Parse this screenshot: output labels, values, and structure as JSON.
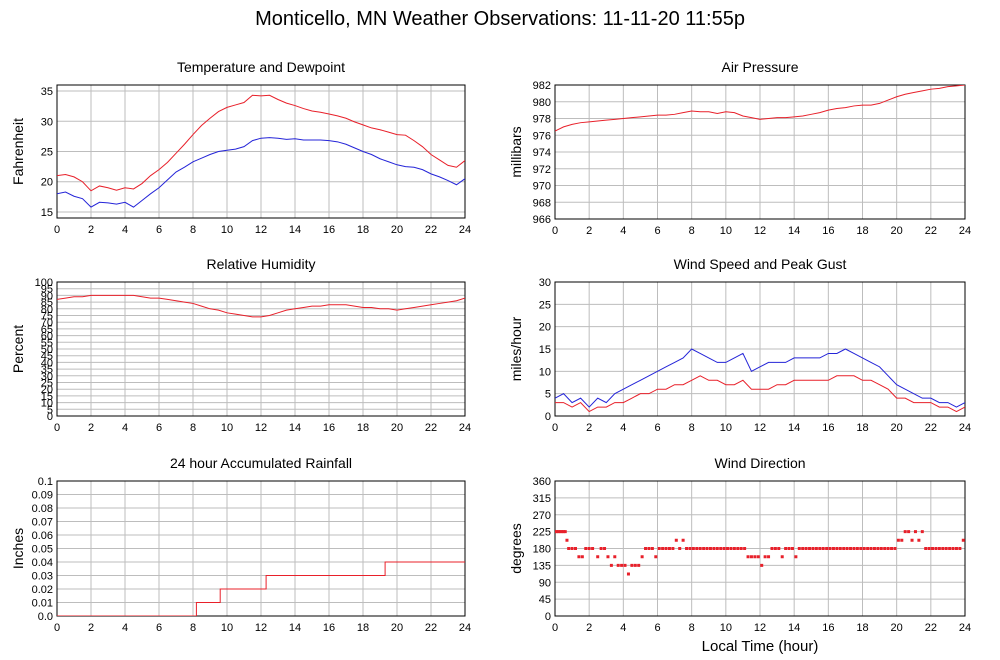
{
  "page": {
    "title": "Monticello, MN Weather Observations: 11-11-20 11:55p"
  },
  "colors": {
    "red": "#e8202a",
    "blue": "#2424d8",
    "grid": "#bdbdbd",
    "axis": "#000000"
  },
  "chart_data": [
    {
      "id": "temp",
      "type": "line",
      "title": "Temperature and Dewpoint",
      "ylabel": "Fahrenheit",
      "xlabel": "",
      "xlim": [
        0,
        24
      ],
      "ylim": [
        14,
        36
      ],
      "xticks": [
        "0",
        "2",
        "4",
        "6",
        "8",
        "10",
        "12",
        "14",
        "16",
        "18",
        "20",
        "22",
        "24"
      ],
      "yticks": [
        "15",
        "20",
        "25",
        "30",
        "35"
      ],
      "grid": true,
      "series": [
        {
          "color": "red",
          "x": [
            0,
            0.5,
            1,
            1.5,
            2,
            2.5,
            3,
            3.5,
            4,
            4.5,
            5,
            5.5,
            6,
            6.5,
            7,
            7.5,
            8,
            8.5,
            9,
            9.5,
            10,
            10.5,
            11,
            11.5,
            12,
            12.5,
            13,
            13.5,
            14,
            14.5,
            15,
            15.5,
            16,
            16.5,
            17,
            17.5,
            18,
            18.5,
            19,
            19.5,
            20,
            20.5,
            21,
            21.5,
            22,
            22.5,
            23,
            23.5,
            24
          ],
          "y": [
            21,
            21.2,
            20.8,
            20,
            18.5,
            19.3,
            19,
            18.6,
            19,
            18.8,
            19.7,
            21,
            22,
            23.2,
            24.7,
            26.2,
            27.8,
            29.3,
            30.5,
            31.6,
            32.3,
            32.7,
            33.1,
            34.3,
            34.2,
            34.3,
            33.6,
            33,
            32.6,
            32.1,
            31.7,
            31.5,
            31.2,
            30.9,
            30.5,
            29.9,
            29.4,
            28.9,
            28.6,
            28.2,
            27.8,
            27.7,
            26.8,
            25.8,
            24.5,
            23.6,
            22.7,
            22.4,
            23.5
          ]
        },
        {
          "color": "blue",
          "x": [
            0,
            0.5,
            1,
            1.5,
            2,
            2.5,
            3,
            3.5,
            4,
            4.5,
            5,
            5.5,
            6,
            6.5,
            7,
            7.5,
            8,
            8.5,
            9,
            9.5,
            10,
            10.5,
            11,
            11.5,
            12,
            12.5,
            13,
            13.5,
            14,
            14.5,
            15,
            15.5,
            16,
            16.5,
            17,
            17.5,
            18,
            18.5,
            19,
            19.5,
            20,
            20.5,
            21,
            21.5,
            22,
            22.5,
            23,
            23.5,
            24
          ],
          "y": [
            18,
            18.3,
            17.6,
            17.2,
            15.8,
            16.6,
            16.5,
            16.3,
            16.6,
            15.8,
            16.9,
            18,
            19,
            20.3,
            21.6,
            22.4,
            23.3,
            23.9,
            24.5,
            25,
            25.2,
            25.4,
            25.8,
            26.8,
            27.2,
            27.3,
            27.2,
            27,
            27.1,
            26.9,
            26.9,
            26.9,
            26.8,
            26.6,
            26.2,
            25.6,
            25,
            24.5,
            23.8,
            23.3,
            22.8,
            22.5,
            22.4,
            22,
            21.3,
            20.8,
            20.2,
            19.5,
            20.5
          ]
        }
      ]
    },
    {
      "id": "pressure",
      "type": "line",
      "title": "Air Pressure",
      "ylabel": "millibars",
      "xlabel": "",
      "xlim": [
        0,
        24
      ],
      "ylim": [
        966,
        982
      ],
      "xticks": [
        "0",
        "2",
        "4",
        "6",
        "8",
        "10",
        "12",
        "14",
        "16",
        "18",
        "20",
        "22",
        "24"
      ],
      "yticks": [
        "966",
        "968",
        "970",
        "972",
        "974",
        "976",
        "978",
        "980",
        "982"
      ],
      "grid": true,
      "series": [
        {
          "color": "red",
          "x": [
            0,
            0.5,
            1,
            1.5,
            2,
            2.5,
            3,
            3.5,
            4,
            4.5,
            5,
            5.5,
            6,
            6.5,
            7,
            7.5,
            8,
            8.5,
            9,
            9.5,
            10,
            10.5,
            11,
            11.5,
            12,
            12.5,
            13,
            13.5,
            14,
            14.5,
            15,
            15.5,
            16,
            16.5,
            17,
            17.5,
            18,
            18.5,
            19,
            19.5,
            20,
            20.5,
            21,
            21.5,
            22,
            22.5,
            23,
            23.5,
            24
          ],
          "y": [
            976.5,
            977,
            977.3,
            977.5,
            977.6,
            977.7,
            977.8,
            977.9,
            978,
            978.1,
            978.2,
            978.3,
            978.4,
            978.4,
            978.5,
            978.7,
            978.9,
            978.8,
            978.8,
            978.6,
            978.8,
            978.7,
            978.3,
            978.1,
            977.9,
            978,
            978.1,
            978.1,
            978.2,
            978.3,
            978.5,
            978.7,
            979,
            979.2,
            979.3,
            979.5,
            979.6,
            979.6,
            979.8,
            980.2,
            980.6,
            980.9,
            981.1,
            981.3,
            981.5,
            981.6,
            981.8,
            981.9,
            982
          ]
        }
      ]
    },
    {
      "id": "humidity",
      "type": "line",
      "title": "Relative Humidity",
      "ylabel": "Percent",
      "xlabel": "",
      "xlim": [
        0,
        24
      ],
      "ylim": [
        0,
        100
      ],
      "xticks": [
        "0",
        "2",
        "4",
        "6",
        "8",
        "10",
        "12",
        "14",
        "16",
        "18",
        "20",
        "22",
        "24"
      ],
      "yticks": [
        "0",
        "5",
        "10",
        "15",
        "20",
        "25",
        "30",
        "35",
        "40",
        "45",
        "50",
        "55",
        "60",
        "65",
        "70",
        "75",
        "80",
        "85",
        "90",
        "95",
        "100"
      ],
      "grid": true,
      "series": [
        {
          "color": "red",
          "x": [
            0,
            0.5,
            1,
            1.5,
            2,
            2.5,
            3,
            3.5,
            4,
            4.5,
            5,
            5.5,
            6,
            6.5,
            7,
            7.5,
            8,
            8.5,
            9,
            9.5,
            10,
            10.5,
            11,
            11.5,
            12,
            12.5,
            13,
            13.5,
            14,
            14.5,
            15,
            15.5,
            16,
            16.5,
            17,
            17.5,
            18,
            18.5,
            19,
            19.5,
            20,
            20.5,
            21,
            21.5,
            22,
            22.5,
            23,
            23.5,
            24
          ],
          "y": [
            87,
            88,
            89,
            89,
            90,
            90,
            90,
            90,
            90,
            90,
            89,
            88,
            88,
            87,
            86,
            85,
            84,
            82,
            80,
            79,
            77,
            76,
            75,
            74,
            74,
            75,
            77,
            79,
            80,
            81,
            82,
            82,
            83,
            83,
            83,
            82,
            81,
            81,
            80,
            80,
            79,
            80,
            81,
            82,
            83,
            84,
            85,
            86,
            88
          ]
        }
      ]
    },
    {
      "id": "wind",
      "type": "line",
      "title": "Wind Speed and Peak Gust",
      "ylabel": "miles/hour",
      "xlabel": "",
      "xlim": [
        0,
        24
      ],
      "ylim": [
        0,
        30
      ],
      "xticks": [
        "0",
        "2",
        "4",
        "6",
        "8",
        "10",
        "12",
        "14",
        "16",
        "18",
        "20",
        "22",
        "24"
      ],
      "yticks": [
        "0",
        "5",
        "10",
        "15",
        "20",
        "25",
        "30"
      ],
      "grid": true,
      "series": [
        {
          "color": "blue",
          "x": [
            0,
            0.5,
            1,
            1.5,
            2,
            2.5,
            3,
            3.5,
            4,
            4.5,
            5,
            5.5,
            6,
            6.5,
            7,
            7.5,
            8,
            8.5,
            9,
            9.5,
            10,
            10.5,
            11,
            11.5,
            12,
            12.5,
            13,
            13.5,
            14,
            14.5,
            15,
            15.5,
            16,
            16.5,
            17,
            17.5,
            18,
            18.5,
            19,
            19.5,
            20,
            20.5,
            21,
            21.5,
            22,
            22.5,
            23,
            23.5,
            24
          ],
          "y": [
            4,
            5,
            3,
            4,
            2,
            4,
            3,
            5,
            6,
            7,
            8,
            9,
            10,
            11,
            12,
            13,
            15,
            14,
            13,
            12,
            12,
            13,
            14,
            10,
            11,
            12,
            12,
            12,
            13,
            13,
            13,
            13,
            14,
            14,
            15,
            14,
            13,
            12,
            11,
            9,
            7,
            6,
            5,
            4,
            4,
            3,
            3,
            2,
            3
          ]
        },
        {
          "color": "red",
          "x": [
            0,
            0.5,
            1,
            1.5,
            2,
            2.5,
            3,
            3.5,
            4,
            4.5,
            5,
            5.5,
            6,
            6.5,
            7,
            7.5,
            8,
            8.5,
            9,
            9.5,
            10,
            10.5,
            11,
            11.5,
            12,
            12.5,
            13,
            13.5,
            14,
            14.5,
            15,
            15.5,
            16,
            16.5,
            17,
            17.5,
            18,
            18.5,
            19,
            19.5,
            20,
            20.5,
            21,
            21.5,
            22,
            22.5,
            23,
            23.5,
            24
          ],
          "y": [
            3,
            3,
            2,
            3,
            1,
            2,
            2,
            3,
            3,
            4,
            5,
            5,
            6,
            6,
            7,
            7,
            8,
            9,
            8,
            8,
            7,
            7,
            8,
            6,
            6,
            6,
            7,
            7,
            8,
            8,
            8,
            8,
            8,
            9,
            9,
            9,
            8,
            8,
            7,
            6,
            4,
            4,
            3,
            3,
            3,
            2,
            2,
            1,
            2
          ]
        }
      ]
    },
    {
      "id": "rain",
      "type": "line",
      "title": "24 hour Accumulated Rainfall",
      "ylabel": "Inches",
      "xlabel": "",
      "xlim": [
        0,
        24
      ],
      "ylim": [
        0,
        0.1
      ],
      "xticks": [
        "0",
        "2",
        "4",
        "6",
        "8",
        "10",
        "12",
        "14",
        "16",
        "18",
        "20",
        "22",
        "24"
      ],
      "yticks": [
        "0.0",
        "0.01",
        "0.02",
        "0.03",
        "0.04",
        "0.05",
        "0.06",
        "0.07",
        "0.08",
        "0.09",
        "0.1"
      ],
      "grid": true,
      "series": [
        {
          "color": "red",
          "step": true,
          "x": [
            0,
            8.2,
            9.6,
            12.3,
            19.3,
            24
          ],
          "y": [
            0,
            0.01,
            0.02,
            0.03,
            0.04,
            0.04
          ]
        }
      ]
    },
    {
      "id": "direction",
      "type": "scatter",
      "title": "Wind Direction",
      "ylabel": "degrees",
      "xlabel": "Local Time (hour)",
      "xlim": [
        0,
        24
      ],
      "ylim": [
        0,
        360
      ],
      "xticks": [
        "0",
        "2",
        "4",
        "6",
        "8",
        "10",
        "12",
        "14",
        "16",
        "18",
        "20",
        "22",
        "24"
      ],
      "yticks": [
        "0",
        "45",
        "90",
        "135",
        "180",
        "225",
        "270",
        "315",
        "360"
      ],
      "grid": true,
      "series": [
        {
          "color": "red",
          "x": [
            0,
            0.1,
            0.2,
            0.3,
            0.4,
            0.5,
            0.6,
            0.7,
            0.8,
            1.0,
            1.2,
            1.4,
            1.6,
            1.8,
            2.0,
            2.2,
            2.5,
            2.7,
            2.9,
            3.1,
            3.3,
            3.5,
            3.7,
            3.9,
            4.1,
            4.3,
            4.5,
            4.7,
            4.9,
            5.1,
            5.3,
            5.5,
            5.7,
            5.9,
            6.1,
            6.3,
            6.5,
            6.7,
            6.9,
            7.1,
            7.3,
            7.5,
            7.7,
            7.9,
            8.1,
            8.3,
            8.5,
            8.7,
            8.9,
            9.1,
            9.3,
            9.5,
            9.7,
            9.9,
            10.1,
            10.3,
            10.5,
            10.7,
            10.9,
            11.1,
            11.3,
            11.5,
            11.7,
            11.9,
            12.1,
            12.3,
            12.5,
            12.7,
            12.9,
            13.1,
            13.3,
            13.5,
            13.7,
            13.9,
            14.1,
            14.3,
            14.5,
            14.7,
            14.9,
            15.1,
            15.3,
            15.5,
            15.7,
            15.9,
            16.1,
            16.3,
            16.5,
            16.7,
            16.9,
            17.1,
            17.3,
            17.5,
            17.7,
            17.9,
            18.1,
            18.3,
            18.5,
            18.7,
            18.9,
            19.1,
            19.3,
            19.5,
            19.7,
            19.9,
            20.1,
            20.3,
            20.5,
            20.7,
            20.9,
            21.1,
            21.3,
            21.5,
            21.7,
            21.9,
            22.1,
            22.3,
            22.5,
            22.7,
            22.9,
            23.1,
            23.3,
            23.5,
            23.7,
            23.9
          ],
          "y": [
            225,
            225,
            225,
            225,
            225,
            225,
            225,
            202,
            180,
            180,
            180,
            158,
            158,
            180,
            180,
            180,
            158,
            180,
            180,
            158,
            135,
            158,
            135,
            135,
            135,
            112,
            135,
            135,
            135,
            158,
            180,
            180,
            180,
            158,
            180,
            180,
            180,
            180,
            180,
            202,
            180,
            202,
            180,
            180,
            180,
            180,
            180,
            180,
            180,
            180,
            180,
            180,
            180,
            180,
            180,
            180,
            180,
            180,
            180,
            180,
            158,
            158,
            158,
            158,
            135,
            158,
            158,
            180,
            180,
            180,
            158,
            180,
            180,
            180,
            158,
            180,
            180,
            180,
            180,
            180,
            180,
            180,
            180,
            180,
            180,
            180,
            180,
            180,
            180,
            180,
            180,
            180,
            180,
            180,
            180,
            180,
            180,
            180,
            180,
            180,
            180,
            180,
            180,
            180,
            202,
            202,
            225,
            225,
            202,
            225,
            202,
            225,
            180,
            180,
            180,
            180,
            180,
            180,
            180,
            180,
            180,
            180,
            180,
            202
          ]
        }
      ]
    }
  ]
}
